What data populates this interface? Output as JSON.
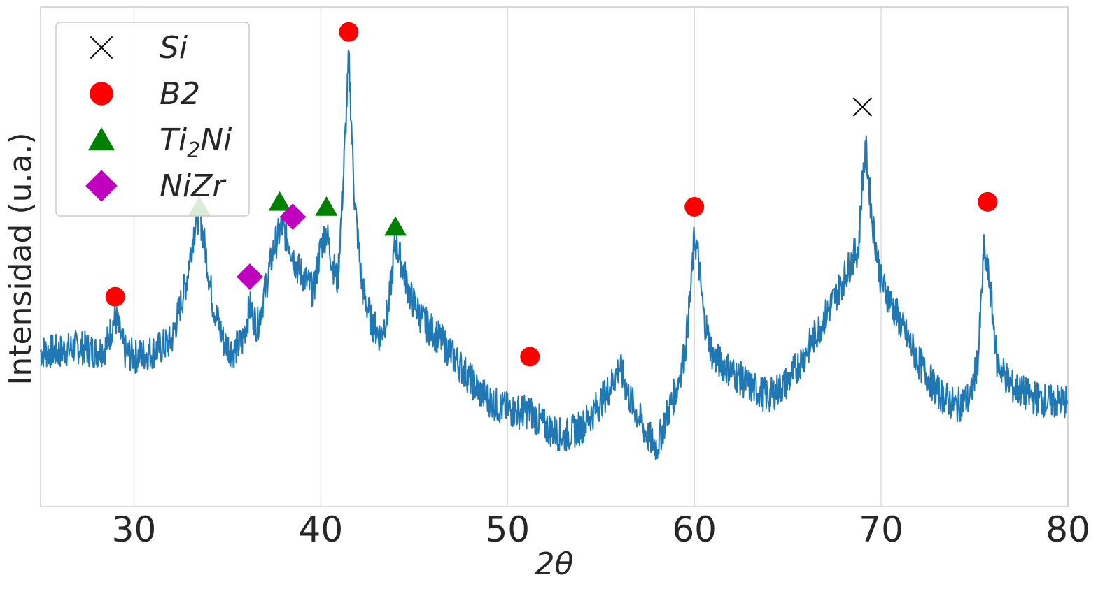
{
  "chart_data": {
    "type": "line",
    "title": "",
    "xlabel": "2θ",
    "ylabel": "Intensidad (u.a.)",
    "xlim": [
      25,
      80
    ],
    "ylim": [
      0,
      1
    ],
    "x_ticks": [
      30,
      40,
      50,
      60,
      70,
      80
    ],
    "x_tick_labels": [
      "30",
      "40",
      "50",
      "60",
      "70",
      "80"
    ],
    "grid": true,
    "legend_position": "top-left",
    "y_ticks_shown": false,
    "line_color": "#1f77b4",
    "series": [
      {
        "x": [
          25.0,
          26.0,
          27.0,
          28.0,
          28.5,
          29.0,
          29.5,
          30.0,
          31.0,
          32.0,
          32.8,
          33.2,
          33.5,
          33.8,
          34.2,
          34.8,
          35.3,
          35.8,
          36.2,
          36.6,
          37.0,
          37.5,
          37.9,
          38.3,
          38.7,
          39.1,
          39.6,
          40.0,
          40.3,
          40.6,
          40.9,
          41.2,
          41.5,
          41.8,
          42.2,
          42.7,
          43.2,
          43.6,
          44.0,
          44.3,
          44.8,
          45.5,
          46.5,
          47.5,
          48.5,
          49.5,
          50.5,
          51.2,
          52.0,
          53.0,
          54.0,
          55.0,
          55.5,
          56.0,
          56.5,
          57.0,
          57.5,
          58.0,
          58.5,
          59.0,
          59.5,
          59.8,
          60.0,
          60.2,
          60.5,
          61.0,
          62.0,
          63.0,
          64.0,
          65.0,
          66.0,
          67.0,
          67.8,
          68.4,
          68.8,
          69.0,
          69.2,
          69.5,
          70.0,
          70.5,
          71.0,
          72.0,
          73.0,
          74.0,
          74.8,
          75.2,
          75.5,
          75.8,
          76.2,
          77.0,
          78.0,
          79.0,
          80.0
        ],
        "y": [
          0.31,
          0.31,
          0.32,
          0.31,
          0.32,
          0.38,
          0.31,
          0.3,
          0.31,
          0.33,
          0.45,
          0.55,
          0.59,
          0.52,
          0.41,
          0.33,
          0.31,
          0.33,
          0.4,
          0.36,
          0.43,
          0.52,
          0.56,
          0.53,
          0.48,
          0.46,
          0.43,
          0.52,
          0.55,
          0.49,
          0.45,
          0.65,
          0.9,
          0.62,
          0.44,
          0.37,
          0.34,
          0.39,
          0.53,
          0.49,
          0.42,
          0.37,
          0.33,
          0.28,
          0.23,
          0.2,
          0.19,
          0.19,
          0.16,
          0.14,
          0.16,
          0.21,
          0.24,
          0.28,
          0.22,
          0.18,
          0.14,
          0.12,
          0.18,
          0.23,
          0.31,
          0.43,
          0.54,
          0.5,
          0.38,
          0.3,
          0.27,
          0.24,
          0.22,
          0.25,
          0.31,
          0.38,
          0.44,
          0.49,
          0.52,
          0.66,
          0.71,
          0.58,
          0.45,
          0.41,
          0.37,
          0.29,
          0.23,
          0.2,
          0.22,
          0.3,
          0.51,
          0.45,
          0.29,
          0.24,
          0.22,
          0.21,
          0.21
        ]
      }
    ],
    "markers": [
      {
        "phase": "Si",
        "symbol": "x",
        "color": "#000000",
        "points": [
          [
            69.0,
            0.8
          ]
        ]
      },
      {
        "phase": "B2",
        "symbol": "circle",
        "color": "#ff0000",
        "points": [
          [
            29.0,
            0.42
          ],
          [
            41.5,
            0.95
          ],
          [
            51.2,
            0.3
          ],
          [
            60.0,
            0.6
          ],
          [
            75.7,
            0.61
          ]
        ]
      },
      {
        "phase": "Ti2Ni",
        "symbol": "triangle",
        "color": "#008000",
        "points": [
          [
            33.5,
            0.6
          ],
          [
            37.8,
            0.61
          ],
          [
            40.3,
            0.6
          ],
          [
            44.0,
            0.56
          ]
        ]
      },
      {
        "phase": "NiZr",
        "symbol": "diamond",
        "color": "#bf00bf",
        "points": [
          [
            36.2,
            0.46
          ],
          [
            38.5,
            0.58
          ]
        ]
      }
    ],
    "legend": [
      {
        "symbol": "x",
        "color": "#000000",
        "label": "Si"
      },
      {
        "symbol": "circle",
        "color": "#ff0000",
        "label": "B2"
      },
      {
        "symbol": "triangle",
        "color": "#008000",
        "label": "Ti",
        "label_sub": "2",
        "label_rest": "Ni"
      },
      {
        "symbol": "diamond",
        "color": "#bf00bf",
        "label": "NiZr"
      }
    ]
  }
}
